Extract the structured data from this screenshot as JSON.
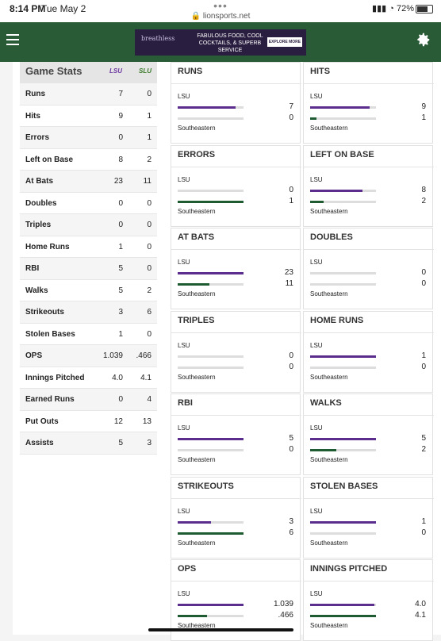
{
  "status": {
    "time": "8:14 PM",
    "date": "Tue May 2",
    "url": "lionsports.net",
    "battery": "72%",
    "dots": "•••"
  },
  "ad": {
    "brand": "breathless",
    "tagline": "FABULOUS FOOD, COOL COCKTAILS, & SUPERB SERVICE",
    "button": "EXPLORE MORE"
  },
  "colors": {
    "nav": "#2a5b37",
    "lsu": "#5b2d8c",
    "southeastern": "#1f5b30"
  },
  "table": {
    "title": "Game Stats",
    "logos": {
      "left": "LSU",
      "right": "SLU"
    },
    "rows": [
      {
        "label": "Runs",
        "lsu": "7",
        "se": "0"
      },
      {
        "label": "Hits",
        "lsu": "9",
        "se": "1"
      },
      {
        "label": "Errors",
        "lsu": "0",
        "se": "1"
      },
      {
        "label": "Left on Base",
        "lsu": "8",
        "se": "2"
      },
      {
        "label": "At Bats",
        "lsu": "23",
        "se": "11"
      },
      {
        "label": "Doubles",
        "lsu": "0",
        "se": "0"
      },
      {
        "label": "Triples",
        "lsu": "0",
        "se": "0"
      },
      {
        "label": "Home Runs",
        "lsu": "1",
        "se": "0"
      },
      {
        "label": "RBI",
        "lsu": "5",
        "se": "0"
      },
      {
        "label": "Walks",
        "lsu": "5",
        "se": "2"
      },
      {
        "label": "Strikeouts",
        "lsu": "3",
        "se": "6"
      },
      {
        "label": "Stolen Bases",
        "lsu": "1",
        "se": "0"
      },
      {
        "label": "OPS",
        "lsu": "1.039",
        "se": ".466"
      },
      {
        "label": "Innings Pitched",
        "lsu": "4.0",
        "se": "4.1"
      },
      {
        "label": "Earned Runs",
        "lsu": "0",
        "se": "4"
      },
      {
        "label": "Put Outs",
        "lsu": "12",
        "se": "13"
      },
      {
        "label": "Assists",
        "lsu": "5",
        "se": "3"
      }
    ]
  },
  "cards": [
    {
      "title": "RUNS",
      "top": "LSU",
      "bottom": "Southeastern",
      "v1": "7",
      "v2": "0",
      "f1": 0.875,
      "f2": 0
    },
    {
      "title": "HITS",
      "top": "LSU",
      "bottom": "Southeastern",
      "v1": "9",
      "v2": "1",
      "f1": 0.9,
      "f2": 0.1
    },
    {
      "title": "ERRORS",
      "top": "LSU",
      "bottom": "Southeastern",
      "v1": "0",
      "v2": "1",
      "f1": 0,
      "f2": 1
    },
    {
      "title": "LEFT ON BASE",
      "top": "LSU",
      "bottom": "Southeastern",
      "v1": "8",
      "v2": "2",
      "f1": 0.8,
      "f2": 0.2
    },
    {
      "title": "AT BATS",
      "top": "LSU",
      "bottom": "Southeastern",
      "v1": "23",
      "v2": "11",
      "f1": 1,
      "f2": 0.48
    },
    {
      "title": "DOUBLES",
      "top": "LSU",
      "bottom": "Southeastern",
      "v1": "0",
      "v2": "0",
      "f1": 0,
      "f2": 0
    },
    {
      "title": "TRIPLES",
      "top": "LSU",
      "bottom": "Southeastern",
      "v1": "0",
      "v2": "0",
      "f1": 0,
      "f2": 0
    },
    {
      "title": "HOME RUNS",
      "top": "LSU",
      "bottom": "Southeastern",
      "v1": "1",
      "v2": "0",
      "f1": 1,
      "f2": 0
    },
    {
      "title": "RBI",
      "top": "LSU",
      "bottom": "Southeastern",
      "v1": "5",
      "v2": "0",
      "f1": 1,
      "f2": 0
    },
    {
      "title": "WALKS",
      "top": "LSU",
      "bottom": "Southeastern",
      "v1": "5",
      "v2": "2",
      "f1": 1,
      "f2": 0.4
    },
    {
      "title": "STRIKEOUTS",
      "top": "LSU",
      "bottom": "Southeastern",
      "v1": "3",
      "v2": "6",
      "f1": 0.5,
      "f2": 1
    },
    {
      "title": "STOLEN BASES",
      "top": "LSU",
      "bottom": "Southeastern",
      "v1": "1",
      "v2": "0",
      "f1": 1,
      "f2": 0
    },
    {
      "title": "OPS",
      "top": "LSU",
      "bottom": "Southeastern",
      "v1": "1.039",
      "v2": ".466",
      "f1": 1,
      "f2": 0.45
    },
    {
      "title": "INNINGS PITCHED",
      "top": "LSU",
      "bottom": "Southeastern",
      "v1": "4.0",
      "v2": "4.1",
      "f1": 0.98,
      "f2": 1
    }
  ]
}
